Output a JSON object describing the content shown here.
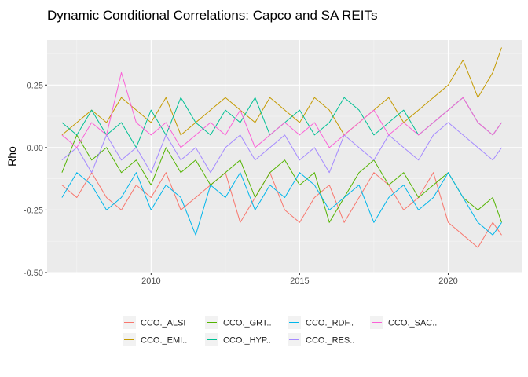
{
  "chart_data": {
    "type": "line",
    "title": "Dynamic Conditional Correlations: Capco and SA REITs",
    "xlabel": "",
    "ylabel": "Rho",
    "xlim": [
      2006.5,
      2022.5
    ],
    "ylim": [
      -0.5,
      0.43
    ],
    "x_ticks": [
      2010,
      2015,
      2020
    ],
    "x_tick_labels": [
      "2010",
      "2015",
      "2020"
    ],
    "y_ticks": [
      -0.5,
      -0.25,
      0.0,
      0.25
    ],
    "y_tick_labels": [
      "-0.50",
      "-0.25",
      "0.00",
      "0.25"
    ],
    "grid": true,
    "legend_position": "bottom",
    "colors": {
      "panel_background": "#ebebeb",
      "grid_major": "#ffffff",
      "grid_minor": "#f5f5f5"
    },
    "series": [
      {
        "name": "CCO._ALSI",
        "color": "#F8766D",
        "x": [
          2007.0,
          2007.5,
          2008.0,
          2008.5,
          2009.0,
          2009.5,
          2010.0,
          2010.5,
          2011.0,
          2011.5,
          2012.0,
          2012.5,
          2013.0,
          2013.5,
          2014.0,
          2014.5,
          2015.0,
          2015.5,
          2016.0,
          2016.5,
          2017.0,
          2017.5,
          2018.0,
          2018.5,
          2019.0,
          2019.5,
          2020.0,
          2020.5,
          2021.0,
          2021.5,
          2021.8
        ],
        "values": [
          -0.15,
          -0.2,
          -0.1,
          -0.2,
          -0.25,
          -0.15,
          -0.2,
          -0.1,
          -0.25,
          -0.2,
          -0.15,
          -0.1,
          -0.3,
          -0.2,
          -0.1,
          -0.25,
          -0.3,
          -0.2,
          -0.15,
          -0.3,
          -0.2,
          -0.1,
          -0.15,
          -0.25,
          -0.2,
          -0.1,
          -0.3,
          -0.35,
          -0.4,
          -0.3,
          -0.35
        ]
      },
      {
        "name": "CCO._EMI..",
        "color": "#C49A00",
        "x": [
          2007.0,
          2007.5,
          2008.0,
          2008.5,
          2009.0,
          2009.5,
          2010.0,
          2010.5,
          2011.0,
          2011.5,
          2012.0,
          2012.5,
          2013.0,
          2013.5,
          2014.0,
          2014.5,
          2015.0,
          2015.5,
          2016.0,
          2016.5,
          2017.0,
          2017.5,
          2018.0,
          2018.5,
          2019.0,
          2019.5,
          2020.0,
          2020.5,
          2021.0,
          2021.5,
          2021.8
        ],
        "values": [
          0.05,
          0.1,
          0.15,
          0.1,
          0.2,
          0.15,
          0.1,
          0.2,
          0.05,
          0.1,
          0.15,
          0.2,
          0.15,
          0.1,
          0.2,
          0.15,
          0.1,
          0.2,
          0.15,
          0.05,
          0.1,
          0.15,
          0.2,
          0.1,
          0.15,
          0.2,
          0.25,
          0.35,
          0.2,
          0.3,
          0.4
        ]
      },
      {
        "name": "CCO._GRT..",
        "color": "#53B400",
        "x": [
          2007.0,
          2007.5,
          2008.0,
          2008.5,
          2009.0,
          2009.5,
          2010.0,
          2010.5,
          2011.0,
          2011.5,
          2012.0,
          2012.5,
          2013.0,
          2013.5,
          2014.0,
          2014.5,
          2015.0,
          2015.5,
          2016.0,
          2016.5,
          2017.0,
          2017.5,
          2018.0,
          2018.5,
          2019.0,
          2019.5,
          2020.0,
          2020.5,
          2021.0,
          2021.5,
          2021.8
        ],
        "values": [
          -0.1,
          0.05,
          -0.05,
          0.0,
          -0.1,
          -0.05,
          -0.15,
          0.0,
          -0.1,
          -0.05,
          -0.15,
          -0.1,
          -0.05,
          -0.2,
          -0.1,
          -0.05,
          -0.15,
          -0.1,
          -0.3,
          -0.2,
          -0.1,
          -0.05,
          -0.15,
          -0.1,
          -0.2,
          -0.15,
          -0.1,
          -0.2,
          -0.25,
          -0.2,
          -0.3
        ]
      },
      {
        "name": "CCO._HYP..",
        "color": "#00C094",
        "x": [
          2007.0,
          2007.5,
          2008.0,
          2008.5,
          2009.0,
          2009.5,
          2010.0,
          2010.5,
          2011.0,
          2011.5,
          2012.0,
          2012.5,
          2013.0,
          2013.5,
          2014.0,
          2014.5,
          2015.0,
          2015.5,
          2016.0,
          2016.5,
          2017.0,
          2017.5,
          2018.0,
          2018.5,
          2019.0,
          2019.5,
          2020.0,
          2020.5,
          2021.0,
          2021.5,
          2021.8
        ],
        "values": [
          0.1,
          0.05,
          0.15,
          0.05,
          0.1,
          0.0,
          0.15,
          0.05,
          0.2,
          0.1,
          0.05,
          0.15,
          0.1,
          0.2,
          0.05,
          0.1,
          0.15,
          0.05,
          0.1,
          0.2,
          0.15,
          0.05,
          0.1,
          0.15,
          0.05,
          0.1,
          0.15,
          0.2,
          0.1,
          0.05,
          0.1
        ]
      },
      {
        "name": "CCO._RDF..",
        "color": "#00B6EB",
        "x": [
          2007.0,
          2007.5,
          2008.0,
          2008.5,
          2009.0,
          2009.5,
          2010.0,
          2010.5,
          2011.0,
          2011.5,
          2012.0,
          2012.5,
          2013.0,
          2013.5,
          2014.0,
          2014.5,
          2015.0,
          2015.5,
          2016.0,
          2016.5,
          2017.0,
          2017.5,
          2018.0,
          2018.5,
          2019.0,
          2019.5,
          2020.0,
          2020.5,
          2021.0,
          2021.5,
          2021.8
        ],
        "values": [
          -0.2,
          -0.1,
          -0.15,
          -0.25,
          -0.2,
          -0.1,
          -0.25,
          -0.15,
          -0.2,
          -0.35,
          -0.15,
          -0.2,
          -0.1,
          -0.25,
          -0.15,
          -0.2,
          -0.1,
          -0.15,
          -0.25,
          -0.2,
          -0.15,
          -0.3,
          -0.2,
          -0.15,
          -0.25,
          -0.2,
          -0.1,
          -0.2,
          -0.3,
          -0.35,
          -0.3
        ]
      },
      {
        "name": "CCO._RES..",
        "color": "#A58AFF",
        "x": [
          2007.0,
          2007.5,
          2008.0,
          2008.5,
          2009.0,
          2009.5,
          2010.0,
          2010.5,
          2011.0,
          2011.5,
          2012.0,
          2012.5,
          2013.0,
          2013.5,
          2014.0,
          2014.5,
          2015.0,
          2015.5,
          2016.0,
          2016.5,
          2017.0,
          2017.5,
          2018.0,
          2018.5,
          2019.0,
          2019.5,
          2020.0,
          2020.5,
          2021.0,
          2021.5,
          2021.8
        ],
        "values": [
          -0.05,
          0.0,
          -0.1,
          0.05,
          -0.05,
          0.0,
          -0.1,
          0.05,
          -0.05,
          0.0,
          -0.1,
          0.0,
          0.05,
          -0.05,
          0.0,
          0.05,
          -0.05,
          0.0,
          -0.1,
          0.05,
          0.0,
          -0.05,
          0.05,
          0.0,
          -0.05,
          0.05,
          0.1,
          0.05,
          0.0,
          -0.05,
          0.0
        ]
      },
      {
        "name": "CCO._SAC..",
        "color": "#FB61D7",
        "x": [
          2007.0,
          2007.5,
          2008.0,
          2008.5,
          2009.0,
          2009.5,
          2010.0,
          2010.5,
          2011.0,
          2011.5,
          2012.0,
          2012.5,
          2013.0,
          2013.5,
          2014.0,
          2014.5,
          2015.0,
          2015.5,
          2016.0,
          2016.5,
          2017.0,
          2017.5,
          2018.0,
          2018.5,
          2019.0,
          2019.5,
          2020.0,
          2020.5,
          2021.0,
          2021.5,
          2021.8
        ],
        "values": [
          0.05,
          0.0,
          0.1,
          0.05,
          0.3,
          0.1,
          0.05,
          0.1,
          0.0,
          0.05,
          0.1,
          0.05,
          0.15,
          0.0,
          0.05,
          0.1,
          0.05,
          0.1,
          0.0,
          0.05,
          0.1,
          0.15,
          0.05,
          0.1,
          0.05,
          0.1,
          0.15,
          0.2,
          0.1,
          0.05,
          0.1
        ]
      }
    ]
  }
}
